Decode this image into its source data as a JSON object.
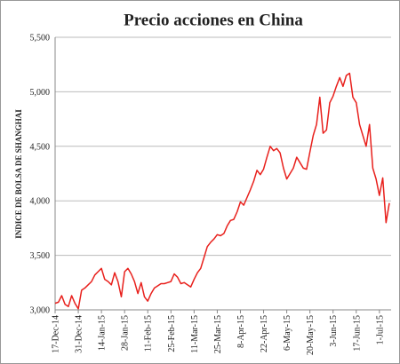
{
  "chart_data": {
    "type": "line",
    "title": "Precio acciones en China",
    "y_label": "INDICE DE BOLSA DE SHANGHAI",
    "categories": [
      "17-Dec-14",
      null,
      null,
      null,
      null,
      null,
      null,
      "31-Dec-14",
      null,
      null,
      null,
      null,
      null,
      null,
      "14-Jan-15",
      null,
      null,
      null,
      null,
      null,
      null,
      "28-Jan-15",
      null,
      null,
      null,
      null,
      null,
      null,
      "11-Feb-15",
      null,
      null,
      null,
      null,
      null,
      null,
      "25-Feb-15",
      null,
      null,
      null,
      null,
      null,
      null,
      "11-Mar-15",
      null,
      null,
      null,
      null,
      null,
      null,
      "25-Mar-15",
      null,
      null,
      null,
      null,
      null,
      null,
      "8-Apr-15",
      null,
      null,
      null,
      null,
      null,
      null,
      "22-Apr-15",
      null,
      null,
      null,
      null,
      null,
      null,
      "6-May-15",
      null,
      null,
      null,
      null,
      null,
      null,
      "20-May-15",
      null,
      null,
      null,
      null,
      null,
      null,
      "3-Jun-15",
      null,
      null,
      null,
      null,
      null,
      null,
      "17-Jun-15",
      null,
      null,
      null,
      null,
      null,
      null,
      "1-Jul-15",
      null,
      null,
      null
    ],
    "series": [
      {
        "name": "Shanghai",
        "color": "#e8201c",
        "values": [
          3060,
          3070,
          3130,
          3050,
          3030,
          3130,
          3060,
          3010,
          3180,
          3200,
          3230,
          3260,
          3320,
          3350,
          3380,
          3280,
          3260,
          3230,
          3340,
          3260,
          3120,
          3350,
          3380,
          3330,
          3260,
          3150,
          3250,
          3120,
          3080,
          3150,
          3200,
          3220,
          3240,
          3240,
          3250,
          3260,
          3330,
          3300,
          3240,
          3250,
          3230,
          3210,
          3280,
          3340,
          3380,
          3480,
          3580,
          3620,
          3650,
          3690,
          3680,
          3700,
          3770,
          3820,
          3830,
          3900,
          3990,
          3960,
          4030,
          4100,
          4180,
          4280,
          4240,
          4290,
          4400,
          4500,
          4460,
          4480,
          4440,
          4300,
          4200,
          4250,
          4300,
          4400,
          4350,
          4300,
          4290,
          4450,
          4600,
          4700,
          4950,
          4620,
          4650,
          4900,
          4960,
          5050,
          5130,
          5050,
          5150,
          5170,
          4950,
          4900,
          4700,
          4600,
          4500,
          4700,
          4300,
          4200,
          4050,
          4210,
          3800,
          3980
        ]
      }
    ],
    "ylim": [
      3000,
      5500
    ],
    "yticks": [
      {
        "value": 3000,
        "label": "3,000"
      },
      {
        "value": 3500,
        "label": "3,500"
      },
      {
        "value": 4000,
        "label": "4,000"
      },
      {
        "value": 4500,
        "label": "4,500"
      },
      {
        "value": 5000,
        "label": "5,000"
      },
      {
        "value": 5500,
        "label": "5,500"
      }
    ],
    "grid": true
  }
}
